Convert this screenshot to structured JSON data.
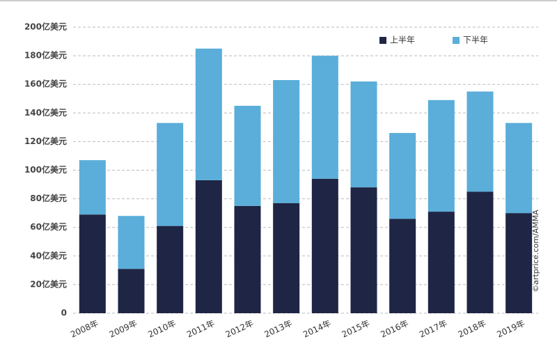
{
  "chart_data": {
    "type": "stacked-bar",
    "categories": [
      "2008年",
      "2009年",
      "2010年",
      "2011年",
      "2012年",
      "2013年",
      "2014年",
      "2015年",
      "2016年",
      "2017年",
      "2018年",
      "2019年"
    ],
    "series": [
      {
        "name": "上半年",
        "color": "#1f2544",
        "values": [
          69,
          31,
          61,
          93,
          75,
          77,
          94,
          88,
          66,
          71,
          85,
          70
        ]
      },
      {
        "name": "下半年",
        "color": "#5aaed9",
        "values": [
          38,
          37,
          72,
          92,
          70,
          86,
          86,
          74,
          60,
          78,
          70,
          63
        ]
      }
    ],
    "ylim": [
      0,
      200
    ],
    "yticks": [
      0,
      {
        "value": 20,
        "label": "20亿美元"
      },
      {
        "value": 40,
        "label": "40亿美元"
      },
      {
        "value": 60,
        "label": "60亿美元"
      },
      {
        "value": 80,
        "label": "80亿美元"
      },
      {
        "value": 100,
        "label": "100亿美元"
      },
      {
        "value": 120,
        "label": "120亿美元"
      },
      {
        "value": 140,
        "label": "140亿美元"
      },
      {
        "value": 160,
        "label": "160亿美元"
      },
      {
        "value": 180,
        "label": "180亿美元"
      },
      {
        "value": 200,
        "label": "200亿美元"
      }
    ],
    "grid": true,
    "legend": "top-right",
    "source": "©artprice.com/AMMA"
  }
}
